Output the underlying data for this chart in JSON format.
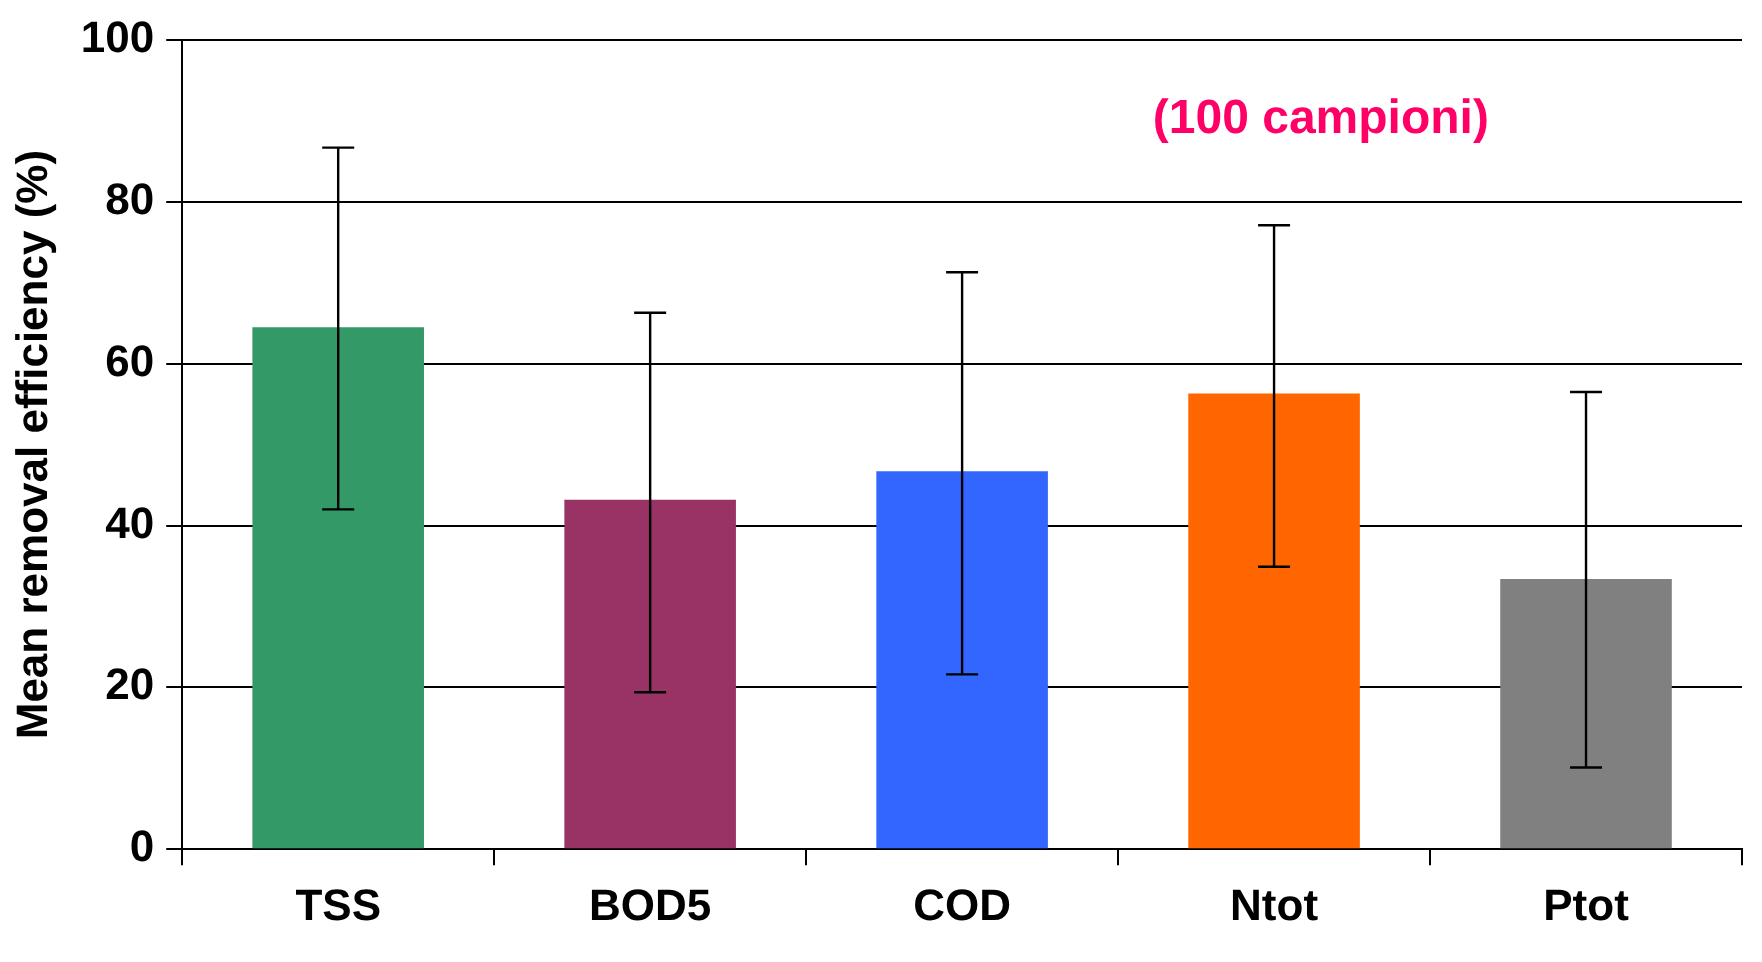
{
  "chart_data": {
    "type": "bar",
    "ylabel": "Mean removal efficiency (%)",
    "categories": [
      "TSS",
      "BOD5",
      "COD",
      "Ntot",
      "Ptot"
    ],
    "values": [
      64.5,
      43.2,
      46.7,
      56.3,
      33.4
    ],
    "colors": [
      "#339966",
      "#993366",
      "#3366ff",
      "#ff6600",
      "#808080"
    ],
    "errors": [
      [
        42.0,
        86.7
      ],
      [
        19.4,
        66.3
      ],
      [
        21.6,
        71.3
      ],
      [
        34.9,
        77.1
      ],
      [
        10.1,
        56.5
      ]
    ],
    "ylim": [
      0,
      100
    ],
    "yticks": [
      0,
      20,
      40,
      60,
      80,
      100
    ],
    "grid": "y",
    "legend": false,
    "annotations": [
      "(100 campioni)"
    ]
  }
}
